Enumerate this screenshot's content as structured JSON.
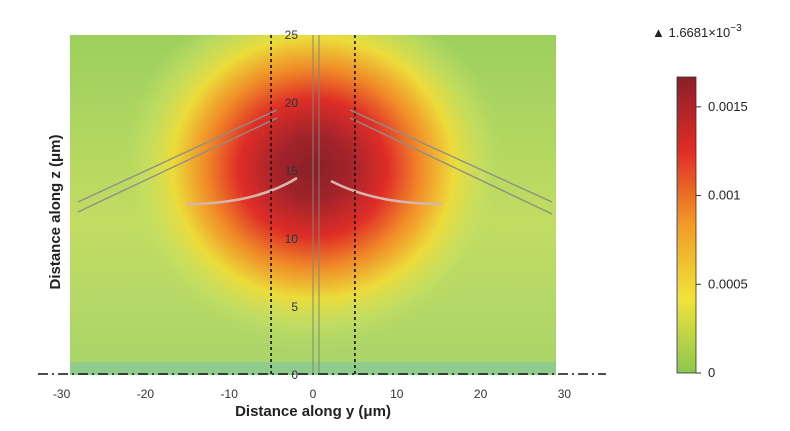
{
  "chart_data": {
    "type": "heatmap",
    "xlabel": "Distance along y (μm)",
    "ylabel": "Distance  along z (μm)",
    "xlim": [
      -29,
      29
    ],
    "ylim": [
      0,
      25
    ],
    "x_ticks": [
      "-30",
      "-20",
      "-10",
      "0",
      "10",
      "20",
      "30"
    ],
    "y_ticks": [
      "0",
      "5",
      "10",
      "15",
      "20",
      "25"
    ],
    "peak": {
      "y": 0,
      "z": 15
    },
    "colorbar": {
      "range": [
        0,
        0.0016681
      ],
      "ticks": [
        "0",
        "0.0005",
        "0.001",
        "0.0015"
      ],
      "max_prefix": "▲ 1.6681×10",
      "max_exponent": "−3",
      "colors": [
        "#8cc64f",
        "#f0e33a",
        "#f19c27",
        "#e02c26",
        "#8a1f28"
      ]
    },
    "dashed_lines_y": [
      -5,
      5
    ],
    "baseline_z": 0
  }
}
